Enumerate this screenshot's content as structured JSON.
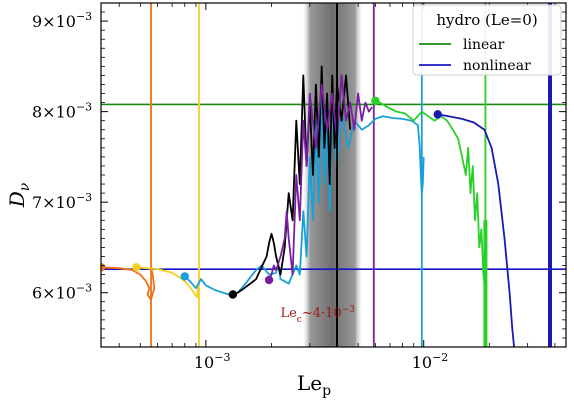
{
  "chart_data": {
    "type": "line",
    "xlabel": "Le",
    "xlabel_sub": "p",
    "ylabel": "D",
    "ylabel_sub": "ν",
    "x_scale": "log",
    "xlim": [
      0.00033,
      0.045
    ],
    "ylim": [
      0.0054,
      0.0092
    ],
    "grid": false,
    "legend_placement": "top-right",
    "x_ticks": [
      {
        "value": 0.001,
        "base": "10",
        "exp": "−3"
      },
      {
        "value": 0.01,
        "base": "10",
        "exp": "−2"
      }
    ],
    "y_ticks": [
      {
        "value": 0.006,
        "mant": "6×10",
        "exp": "−3"
      },
      {
        "value": 0.007,
        "mant": "7×10",
        "exp": "−3"
      },
      {
        "value": 0.008,
        "mant": "8×10",
        "exp": "−3"
      },
      {
        "value": 0.009,
        "mant": "9×10",
        "exp": "−3"
      }
    ],
    "legend": {
      "title": "hydro (Le=0)",
      "entries": [
        {
          "label": "linear",
          "color": "#1a8a10"
        },
        {
          "label": "nonlinear",
          "color": "#1616c8"
        }
      ]
    },
    "shaded_band": {
      "x_from": 0.0028,
      "x_to": 0.0052
    },
    "critical_line": {
      "x": 0.004
    },
    "annotation": {
      "text": "Le",
      "sub": "c",
      "rest": "~4·10",
      "exp": "−3",
      "color": "#a01818",
      "x": 0.0022,
      "y": 0.00573
    },
    "reference_lines": [
      {
        "name": "linear",
        "y": 0.00808,
        "color": "#1a8a10"
      },
      {
        "name": "nonlinear",
        "y": 0.00626,
        "color": "#1616c8"
      }
    ],
    "series": [
      {
        "color": "#f07018",
        "vline": 0.00056,
        "width": 1.8,
        "points": [
          [
            0.00033,
            0.00628
          ],
          [
            0.0004,
            0.00627
          ],
          [
            0.00046,
            0.00625
          ],
          [
            0.0005,
            0.0062
          ],
          [
            0.00053,
            0.00613
          ],
          [
            0.00055,
            0.00605
          ],
          [
            0.00054,
            0.00598
          ],
          [
            0.00056,
            0.00592
          ],
          [
            0.00058,
            0.00605
          ],
          [
            0.00057,
            0.0062
          ],
          [
            0.00056,
            0.00628
          ]
        ],
        "marker": [
          0.00033,
          0.00628
        ]
      },
      {
        "color": "#f5d020",
        "vline": 0.00093,
        "width": 1.8,
        "points": [
          [
            0.00048,
            0.00628
          ],
          [
            0.0006,
            0.00626
          ],
          [
            0.0007,
            0.00622
          ],
          [
            0.00078,
            0.00615
          ],
          [
            0.00084,
            0.00607
          ],
          [
            0.00088,
            0.006
          ],
          [
            0.00091,
            0.00595
          ],
          [
            0.00092,
            0.00605
          ],
          [
            0.00093,
            0.00615
          ]
        ],
        "marker": [
          0.00048,
          0.00628
        ]
      },
      {
        "color": "#18a0d8",
        "vline": 0.0098,
        "width": 1.8,
        "points": [
          [
            0.0008,
            0.00618
          ],
          [
            0.00085,
            0.00612
          ],
          [
            0.0009,
            0.00605
          ],
          [
            0.00095,
            0.00615
          ],
          [
            0.001,
            0.00608
          ],
          [
            0.0011,
            0.00603
          ],
          [
            0.0012,
            0.006
          ],
          [
            0.00128,
            0.00598
          ],
          [
            0.0014,
            0.006
          ],
          [
            0.0015,
            0.00608
          ],
          [
            0.0016,
            0.00617
          ],
          [
            0.0017,
            0.00625
          ],
          [
            0.0018,
            0.0063
          ],
          [
            0.00195,
            0.0062
          ],
          [
            0.0021,
            0.00622
          ],
          [
            0.00215,
            0.00632
          ],
          [
            0.0022,
            0.00615
          ],
          [
            0.0024,
            0.0061
          ],
          [
            0.0026,
            0.0063
          ],
          [
            0.0027,
            0.0062
          ],
          [
            0.0028,
            0.0069
          ],
          [
            0.0029,
            0.0064
          ],
          [
            0.003,
            0.0075
          ],
          [
            0.0031,
            0.0068
          ],
          [
            0.0032,
            0.0079
          ],
          [
            0.0033,
            0.007
          ],
          [
            0.0034,
            0.0082
          ],
          [
            0.0035,
            0.0072
          ],
          [
            0.0036,
            0.0078
          ],
          [
            0.0037,
            0.0069
          ],
          [
            0.0038,
            0.008
          ],
          [
            0.004,
            0.0074
          ],
          [
            0.0042,
            0.008
          ],
          [
            0.0045,
            0.0076
          ],
          [
            0.0048,
            0.0079
          ],
          [
            0.0052,
            0.0078
          ],
          [
            0.0056,
            0.00785
          ],
          [
            0.006,
            0.00792
          ],
          [
            0.0065,
            0.00795
          ],
          [
            0.0072,
            0.00793
          ],
          [
            0.008,
            0.00792
          ],
          [
            0.0088,
            0.0079
          ],
          [
            0.0094,
            0.00785
          ],
          [
            0.0096,
            0.0076
          ],
          [
            0.0097,
            0.0073
          ],
          [
            0.0098,
            0.0071
          ],
          [
            0.0099,
            0.0072
          ],
          [
            0.01,
            0.0075
          ]
        ],
        "marker": [
          0.0008,
          0.00618
        ]
      },
      {
        "color": "#000000",
        "vline": 0.004,
        "width": 1.8,
        "points": [
          [
            0.00133,
            0.00598
          ],
          [
            0.0014,
            0.006
          ],
          [
            0.0015,
            0.00605
          ],
          [
            0.0016,
            0.0061
          ],
          [
            0.0017,
            0.00615
          ],
          [
            0.0018,
            0.00628
          ],
          [
            0.0019,
            0.0064
          ],
          [
            0.00195,
            0.00655
          ],
          [
            0.002,
            0.00665
          ],
          [
            0.00205,
            0.00655
          ],
          [
            0.0021,
            0.0064
          ],
          [
            0.00215,
            0.0063
          ],
          [
            0.0022,
            0.0062
          ],
          [
            0.0023,
            0.0065
          ],
          [
            0.0024,
            0.0071
          ],
          [
            0.0025,
            0.0068
          ],
          [
            0.0026,
            0.0079
          ],
          [
            0.0027,
            0.0072
          ],
          [
            0.0028,
            0.0084
          ],
          [
            0.0029,
            0.0074
          ],
          [
            0.003,
            0.0081
          ],
          [
            0.0031,
            0.0073
          ],
          [
            0.0032,
            0.0083
          ],
          [
            0.0033,
            0.0075
          ],
          [
            0.0034,
            0.0085
          ],
          [
            0.0035,
            0.0076
          ],
          [
            0.0036,
            0.0082
          ],
          [
            0.0037,
            0.0072
          ],
          [
            0.0038,
            0.0084
          ],
          [
            0.0039,
            0.0076
          ],
          [
            0.004,
            0.0083
          ],
          [
            0.0042,
            0.0079
          ],
          [
            0.0044,
            0.0084
          ],
          [
            0.0046,
            0.0078
          ]
        ],
        "marker": [
          0.00133,
          0.00598
        ]
      },
      {
        "color": "#7820a0",
        "vline": 0.0059,
        "width": 1.8,
        "points": [
          [
            0.00195,
            0.00614
          ],
          [
            0.002,
            0.0062
          ],
          [
            0.00205,
            0.0063
          ],
          [
            0.0021,
            0.00625
          ],
          [
            0.0022,
            0.0064
          ],
          [
            0.0023,
            0.0066
          ],
          [
            0.00235,
            0.0069
          ],
          [
            0.0024,
            0.0066
          ],
          [
            0.0025,
            0.0062
          ],
          [
            0.0026,
            0.0073
          ],
          [
            0.0027,
            0.0068
          ],
          [
            0.0028,
            0.0079
          ],
          [
            0.0029,
            0.0074
          ],
          [
            0.003,
            0.0082
          ],
          [
            0.0032,
            0.0076
          ],
          [
            0.0034,
            0.0083
          ],
          [
            0.0036,
            0.0078
          ],
          [
            0.0038,
            0.0082
          ],
          [
            0.004,
            0.0077
          ],
          [
            0.0042,
            0.0084
          ],
          [
            0.0044,
            0.0079
          ],
          [
            0.0046,
            0.0081
          ],
          [
            0.0048,
            0.0078
          ],
          [
            0.005,
            0.0082
          ],
          [
            0.0052,
            0.0079
          ],
          [
            0.0054,
            0.0081
          ],
          [
            0.0056,
            0.008
          ],
          [
            0.0058,
            0.00805
          ]
        ],
        "marker": [
          0.00195,
          0.00614
        ]
      },
      {
        "color": "#28d028",
        "vline": 0.0192,
        "width": 1.8,
        "points": [
          [
            0.006,
            0.00812
          ],
          [
            0.0063,
            0.0081
          ],
          [
            0.0068,
            0.00805
          ],
          [
            0.0075,
            0.008
          ],
          [
            0.0082,
            0.00798
          ],
          [
            0.009,
            0.0079
          ],
          [
            0.0098,
            0.008
          ],
          [
            0.0105,
            0.00795
          ],
          [
            0.0112,
            0.0079
          ],
          [
            0.012,
            0.00795
          ],
          [
            0.0128,
            0.0079
          ],
          [
            0.0136,
            0.0078
          ],
          [
            0.0144,
            0.0077
          ],
          [
            0.015,
            0.0075
          ],
          [
            0.0156,
            0.0073
          ],
          [
            0.016,
            0.0076
          ],
          [
            0.0164,
            0.0071
          ],
          [
            0.0168,
            0.0074
          ],
          [
            0.0172,
            0.0068
          ],
          [
            0.0176,
            0.0071
          ],
          [
            0.018,
            0.0065
          ],
          [
            0.0184,
            0.0067
          ],
          [
            0.0188,
            0.0062
          ],
          [
            0.0192,
            0.006
          ],
          [
            0.0192,
            0.0054
          ]
        ],
        "marker": [
          0.006,
          0.00812
        ]
      },
      {
        "color": "#1a1ab0",
        "vline": 0.038,
        "width": 1.8,
        "points": [
          [
            0.0116,
            0.00797
          ],
          [
            0.013,
            0.00795
          ],
          [
            0.015,
            0.00792
          ],
          [
            0.017,
            0.00788
          ],
          [
            0.019,
            0.0078
          ],
          [
            0.0205,
            0.0076
          ],
          [
            0.022,
            0.0072
          ],
          [
            0.0235,
            0.0066
          ],
          [
            0.0248,
            0.006
          ],
          [
            0.0255,
            0.0056
          ],
          [
            0.026,
            0.0054
          ]
        ],
        "marker": [
          0.0116,
          0.00797
        ]
      }
    ]
  }
}
